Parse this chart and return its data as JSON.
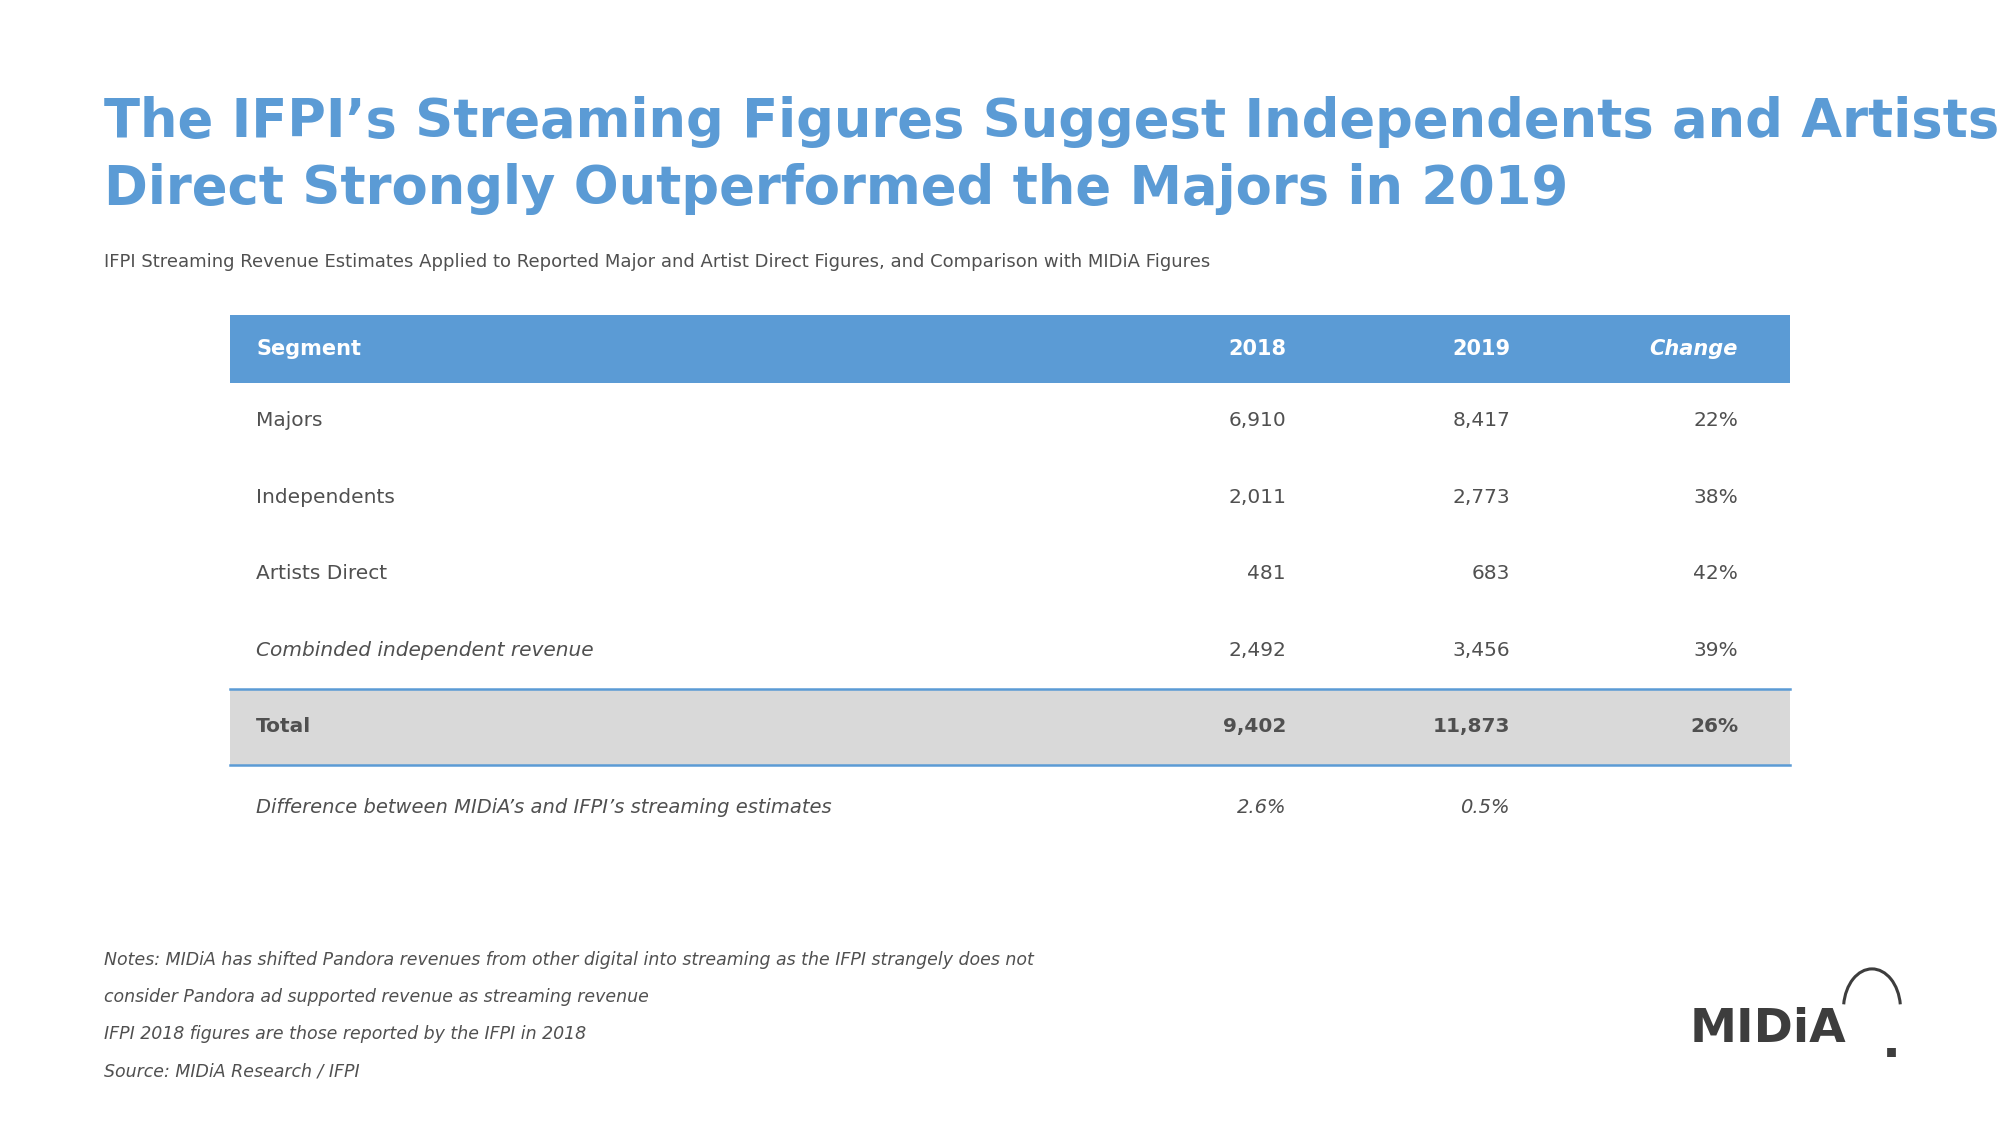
{
  "title_line1": "The IFPI’s Streaming Figures Suggest Independents and Artists",
  "title_line2": "Direct Strongly Outperformed the Majors in 2019",
  "subtitle": "IFPI Streaming Revenue Estimates Applied to Reported Major and Artist Direct Figures, and Comparison with MIDiA Figures",
  "bg_color": "#ffffff",
  "title_color": "#5b9bd5",
  "subtitle_color": "#505050",
  "header_bg": "#5b9bd5",
  "header_text_color": "#ffffff",
  "total_row_bg": "#d9d9d9",
  "table_border_color": "#5b9bd5",
  "table_text_color": "#505050",
  "notes_color": "#505050",
  "midia_logo_color": "#3d3d3d",
  "rows": [
    {
      "segment": "Majors",
      "val2018": "6,910",
      "val2019": "8,417",
      "change": "22%",
      "bold": false,
      "italic": false,
      "bg": "#ffffff"
    },
    {
      "segment": "Independents",
      "val2018": "2,011",
      "val2019": "2,773",
      "change": "38%",
      "bold": false,
      "italic": false,
      "bg": "#ffffff"
    },
    {
      "segment": "Artists Direct",
      "val2018": "481",
      "val2019": "683",
      "change": "42%",
      "bold": false,
      "italic": false,
      "bg": "#ffffff"
    },
    {
      "segment": "Combinded independent revenue",
      "val2018": "2,492",
      "val2019": "3,456",
      "change": "39%",
      "bold": false,
      "italic": true,
      "bg": "#ffffff"
    },
    {
      "segment": "Total",
      "val2018": "9,402",
      "val2019": "11,873",
      "change": "26%",
      "bold": true,
      "italic": false,
      "bg": "#d9d9d9"
    }
  ],
  "diff_label": "Difference between MIDiA’s and IFPI’s streaming estimates",
  "diff_2018": "2.6%",
  "diff_2019": "0.5%",
  "notes": [
    "Notes: MIDiA has shifted Pandora revenues from other digital into streaming as the IFPI strangely does not",
    "consider Pandora ad supported revenue as streaming revenue",
    "IFPI 2018 figures are those reported by the IFPI in 2018",
    "Source: MIDiA Research / IFPI"
  ]
}
